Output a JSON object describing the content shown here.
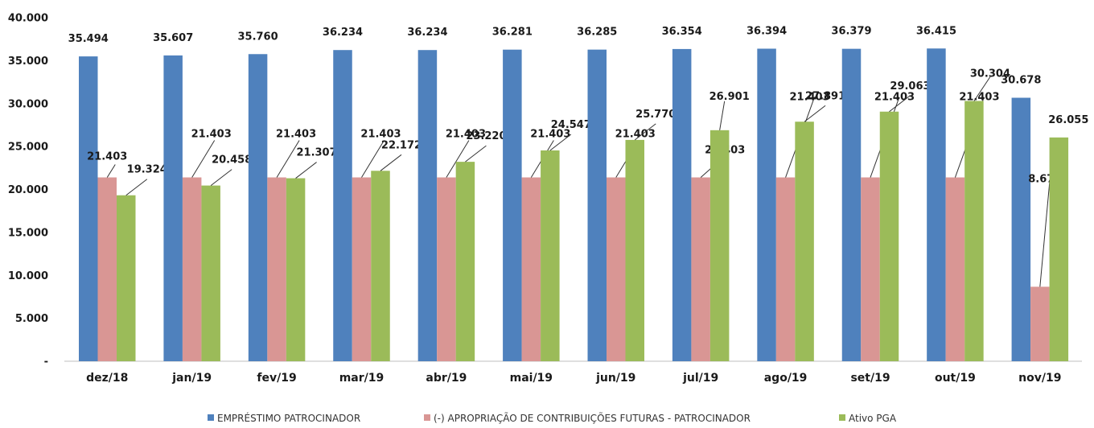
{
  "chart_data": {
    "type": "bar",
    "categories": [
      "dez/18",
      "jan/19",
      "fev/19",
      "mar/19",
      "abr/19",
      "mai/19",
      "jun/19",
      "jul/19",
      "ago/19",
      "set/19",
      "out/19",
      "nov/19"
    ],
    "series": [
      {
        "name": "EMPRÉSTIMO PATROCINADOR",
        "color": "#4f81bd",
        "values": [
          35494,
          35607,
          35760,
          36234,
          36234,
          36281,
          36285,
          36354,
          36394,
          36379,
          36415,
          30678
        ],
        "labels": [
          "35.494",
          "35.607",
          "35.760",
          "36.234",
          "36.234",
          "36.281",
          "36.285",
          "36.354",
          "36.394",
          "36.379",
          "36.415",
          "30.678"
        ]
      },
      {
        "name": "(-) APROPRIAÇÃO DE CONTRIBUIÇÕES FUTURAS - PATROCINADOR",
        "color": "#d99694",
        "values": [
          21403,
          21403,
          21403,
          21403,
          21403,
          21403,
          21403,
          21403,
          21403,
          21403,
          21403,
          8673
        ],
        "labels": [
          "21.403",
          "21.403",
          "21.403",
          "21.403",
          "21.403",
          "21.403",
          "21.403",
          "21.403",
          "21.403",
          "21.403",
          "21.403",
          "8.673"
        ]
      },
      {
        "name": "Ativo PGA",
        "color": "#9bbb59",
        "values": [
          19324,
          20458,
          21307,
          22172,
          23220,
          24547,
          25770,
          26901,
          27891,
          29063,
          30304,
          26055
        ],
        "labels": [
          "19.324",
          "20.458",
          "21.307",
          "22.172",
          "23.220",
          "24.547",
          "25.770",
          "26.901",
          "27.891",
          "29.063",
          "30.304",
          "26.055"
        ]
      }
    ],
    "ylim": [
      0,
      40000
    ],
    "yticks": [
      0,
      5000,
      10000,
      15000,
      20000,
      25000,
      30000,
      35000,
      40000
    ],
    "ytick_labels": [
      "-",
      "5.000",
      "10.000",
      "15.000",
      "20.000",
      "25.000",
      "30.000",
      "35.000",
      "40.000"
    ],
    "grid": false,
    "legend_position": "bottom-center"
  }
}
